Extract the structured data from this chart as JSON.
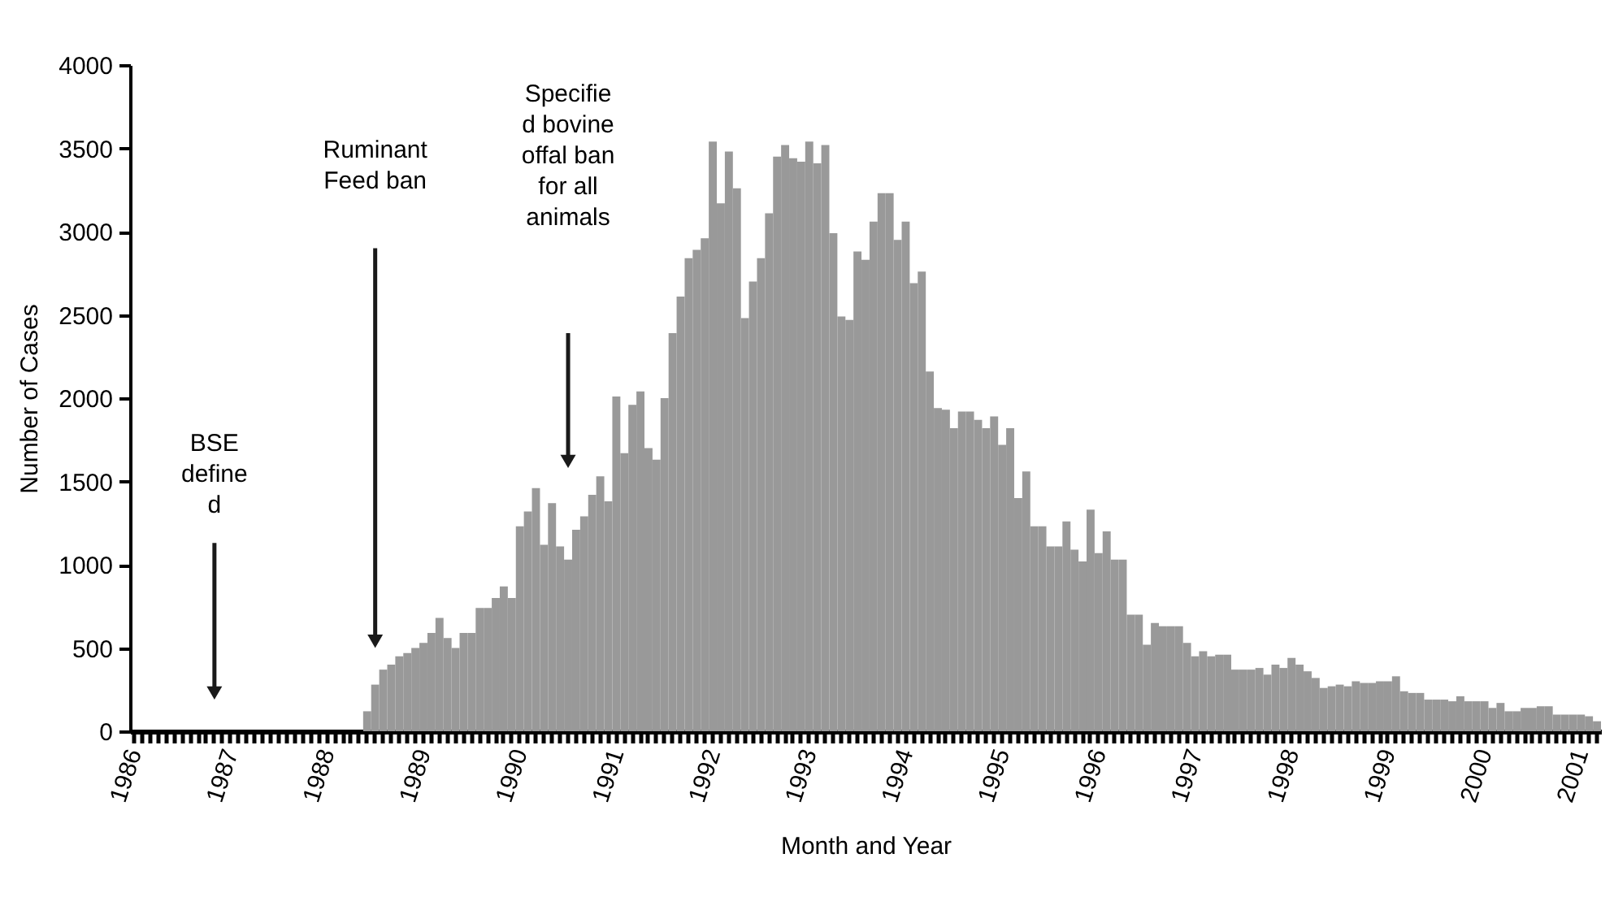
{
  "chart_data": {
    "type": "bar",
    "xlabel": "Month and Year",
    "ylabel": "Number of Cases",
    "color": "#999999",
    "ylim": [
      0,
      4000
    ],
    "yticks": [
      0,
      500,
      1000,
      1500,
      2000,
      2500,
      3000,
      3500,
      4000
    ],
    "annotations": [
      "BSE\ndefine\nd",
      "Ruminant\nFeed ban",
      "Specifie\nd bovine\noffal ban\nfor all\nanimals"
    ],
    "categories": [
      "1986",
      null,
      null,
      null,
      null,
      null,
      null,
      null,
      null,
      null,
      null,
      null,
      "1987",
      null,
      null,
      null,
      null,
      null,
      null,
      null,
      null,
      null,
      null,
      null,
      "1988",
      null,
      null,
      null,
      null,
      null,
      null,
      null,
      null,
      null,
      null,
      null,
      "1989",
      null,
      null,
      null,
      null,
      null,
      null,
      null,
      null,
      null,
      null,
      null,
      "1990",
      null,
      null,
      null,
      null,
      null,
      null,
      null,
      null,
      null,
      null,
      null,
      "1991",
      null,
      null,
      null,
      null,
      null,
      null,
      null,
      null,
      null,
      null,
      null,
      "1992",
      null,
      null,
      null,
      null,
      null,
      null,
      null,
      null,
      null,
      null,
      null,
      "1993",
      null,
      null,
      null,
      null,
      null,
      null,
      null,
      null,
      null,
      null,
      null,
      "1994",
      null,
      null,
      null,
      null,
      null,
      null,
      null,
      null,
      null,
      null,
      null,
      "1995",
      null,
      null,
      null,
      null,
      null,
      null,
      null,
      null,
      null,
      null,
      null,
      "1996",
      null,
      null,
      null,
      null,
      null,
      null,
      null,
      null,
      null,
      null,
      null,
      "1997",
      null,
      null,
      null,
      null,
      null,
      null,
      null,
      null,
      null,
      null,
      null,
      "1998",
      null,
      null,
      null,
      null,
      null,
      null,
      null,
      null,
      null,
      null,
      null,
      "1999",
      null,
      null,
      null,
      null,
      null,
      null,
      null,
      null,
      null,
      null,
      null,
      "2000",
      null,
      null,
      null,
      null,
      null,
      null,
      null,
      null,
      null,
      null,
      null,
      "2001",
      null,
      null
    ],
    "values": [
      null,
      null,
      null,
      null,
      null,
      null,
      null,
      null,
      null,
      null,
      null,
      null,
      null,
      null,
      null,
      null,
      null,
      null,
      null,
      null,
      null,
      null,
      null,
      null,
      null,
      null,
      null,
      null,
      null,
      120,
      280,
      370,
      400,
      450,
      470,
      500,
      530,
      590,
      680,
      560,
      500,
      590,
      590,
      740,
      740,
      800,
      870,
      800,
      1230,
      1320,
      1460,
      1120,
      1370,
      1110,
      1030,
      1210,
      1290,
      1420,
      1530,
      1380,
      2010,
      1670,
      1960,
      2040,
      1700,
      1630,
      2000,
      2390,
      2610,
      2840,
      2890,
      2960,
      3540,
      3170,
      3480,
      3260,
      2480,
      2700,
      2840,
      3110,
      3450,
      3520,
      3440,
      3420,
      3540,
      3410,
      3520,
      2990,
      2490,
      2470,
      2880,
      2830,
      3060,
      3230,
      3230,
      2950,
      3060,
      2690,
      2760,
      2160,
      1940,
      1930,
      1820,
      1920,
      1920,
      1870,
      1820,
      1890,
      1720,
      1820,
      1400,
      1560,
      1230,
      1230,
      1110,
      1110,
      1260,
      1090,
      1020,
      1330,
      1070,
      1200,
      1030,
      1030,
      700,
      700,
      520,
      650,
      630,
      630,
      630,
      530,
      450,
      480,
      450,
      460,
      460,
      370,
      370,
      370,
      380,
      340,
      400,
      380,
      440,
      400,
      360,
      320,
      260,
      270,
      280,
      270,
      300,
      290,
      290,
      300,
      300,
      330,
      240,
      230,
      230,
      190,
      190,
      190,
      180,
      210,
      180,
      180,
      180,
      140,
      170,
      120,
      120,
      140,
      140,
      150,
      150,
      100,
      100,
      100,
      100,
      90,
      60
    ]
  }
}
